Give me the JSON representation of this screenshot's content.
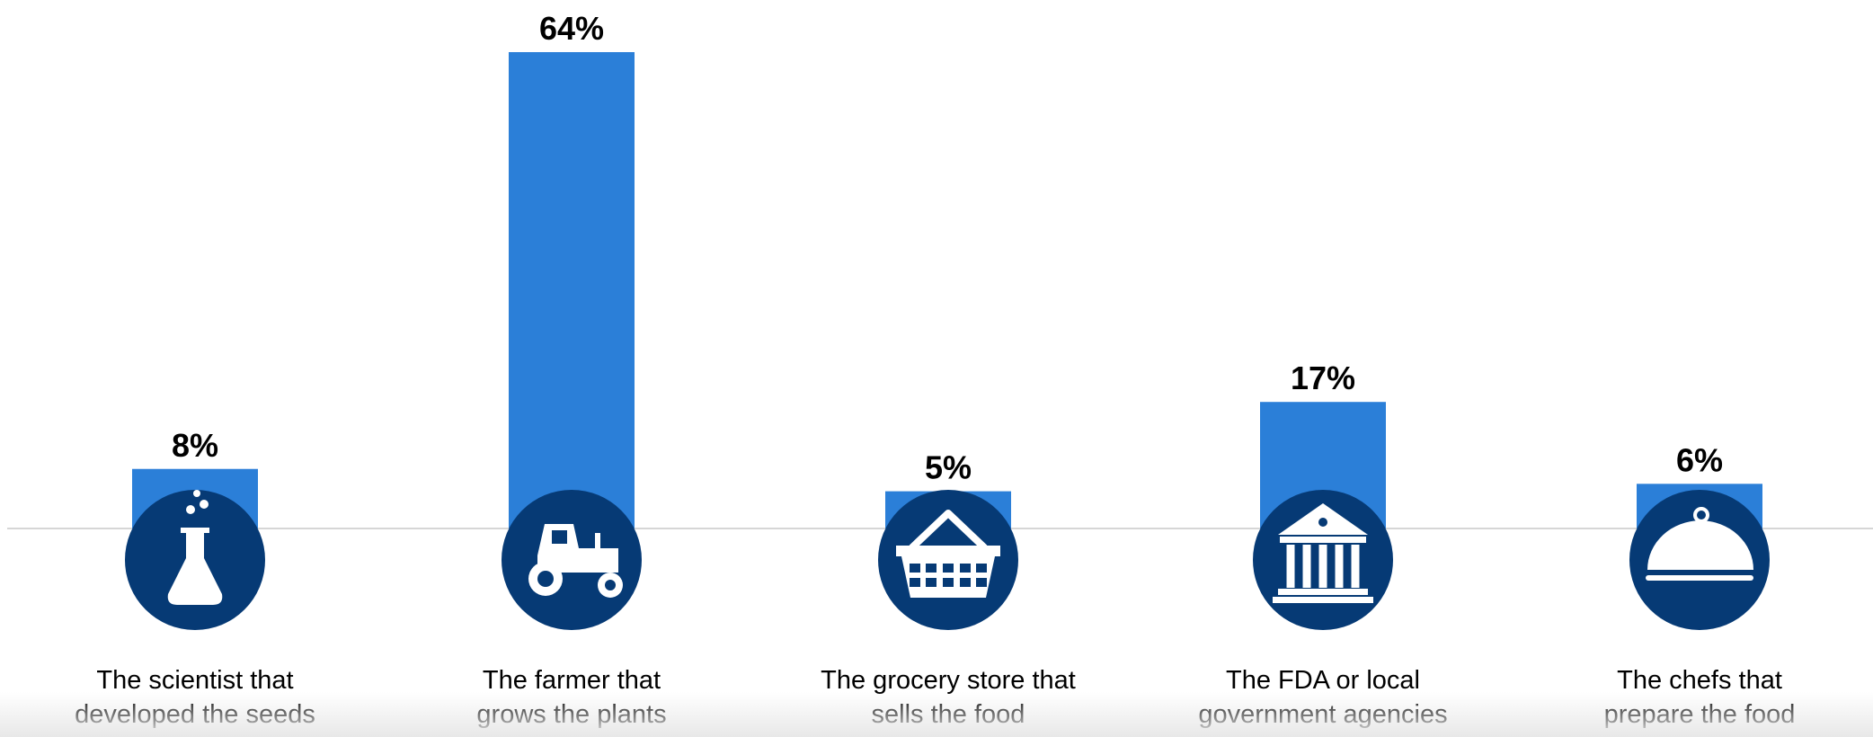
{
  "chart_data": {
    "type": "bar",
    "categories": [
      "The scientist that developed the seeds",
      "The farmer that grows the plants",
      "The grocery store that sells the food",
      "The FDA or local government agencies",
      "The chefs that prepare the food"
    ],
    "category_lines": [
      [
        "The scientist that",
        "developed the seeds"
      ],
      [
        "The farmer that",
        "grows the plants"
      ],
      [
        "The grocery store that",
        "sells the food"
      ],
      [
        "The FDA or local",
        "government agencies"
      ],
      [
        "The chefs that",
        "prepare the food"
      ]
    ],
    "values": [
      8,
      64,
      5,
      17,
      6
    ],
    "value_labels": [
      "8%",
      "64%",
      "5%",
      "17%",
      "6%"
    ],
    "icons": [
      "flask-icon",
      "tractor-icon",
      "shopping-basket-icon",
      "government-building-icon",
      "serving-cloche-icon"
    ],
    "unit": "%",
    "ylim": [
      0,
      64
    ],
    "grid": false,
    "colors": {
      "bar": "#2b7fd8",
      "icon_circle": "#063a75",
      "icon_glyph": "#ffffff",
      "baseline": "#d6d6d6",
      "label_text": "#000000"
    }
  }
}
